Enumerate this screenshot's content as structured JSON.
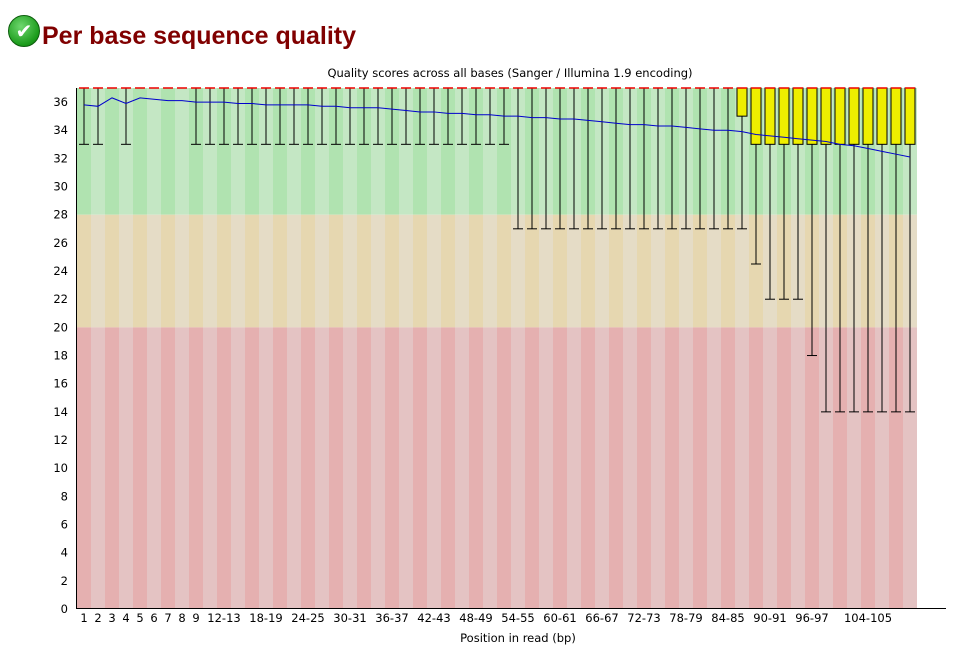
{
  "header": {
    "title": "Per base sequence quality",
    "status_icon": "check-circle-icon"
  },
  "chart_data": {
    "type": "box",
    "title": "Quality scores across all bases (Sanger / Illumina 1.9 encoding)",
    "xlabel": "Position in read (bp)",
    "ylabel": "",
    "ylim": [
      0,
      37
    ],
    "yticks": [
      0,
      2,
      4,
      6,
      8,
      10,
      12,
      14,
      16,
      18,
      20,
      22,
      24,
      26,
      28,
      30,
      32,
      34,
      36
    ],
    "bands": [
      {
        "from": 28,
        "to": 37,
        "colors": [
          "#b0e3b0",
          "#c4e7c4"
        ]
      },
      {
        "from": 20,
        "to": 28,
        "colors": [
          "#e6d7b0",
          "#e5dcc6"
        ]
      },
      {
        "from": 0,
        "to": 20,
        "colors": [
          "#e5b0b0",
          "#e4c3c3"
        ]
      }
    ],
    "categories": [
      "1",
      "2",
      "3",
      "4",
      "5",
      "6",
      "7",
      "8",
      "9",
      "10-11",
      "12-13",
      "14-15",
      "16-17",
      "18-19",
      "20-21",
      "22-23",
      "24-25",
      "26-27",
      "28-29",
      "30-31",
      "32-33",
      "34-35",
      "36-37",
      "38-39",
      "40-41",
      "42-43",
      "44-45",
      "46-47",
      "48-49",
      "50-51",
      "52-53",
      "54-55",
      "56-57",
      "58-59",
      "60-61",
      "62-63",
      "64-65",
      "66-67",
      "68-69",
      "70-71",
      "72-73",
      "74-75",
      "76-77",
      "78-79",
      "80-81",
      "82-83",
      "84-85",
      "86-87",
      "88-89",
      "90-91",
      "92-93",
      "94-95",
      "96-97",
      "98-99",
      "100-101",
      "102-103",
      "104-105",
      "106-107",
      "108-109",
      "110-111"
    ],
    "xtick_labels_shown": [
      "1",
      "2",
      "3",
      "4",
      "5",
      "6",
      "7",
      "8",
      "9",
      "12-13",
      "18-19",
      "24-25",
      "30-31",
      "36-37",
      "42-43",
      "48-49",
      "54-55",
      "60-61",
      "66-67",
      "72-73",
      "78-79",
      "84-85",
      "90-91",
      "96-97",
      "104-105"
    ],
    "median": [
      37,
      37,
      37,
      37,
      37,
      37,
      37,
      37,
      37,
      37,
      37,
      37,
      37,
      37,
      37,
      37,
      37,
      37,
      37,
      37,
      37,
      37,
      37,
      37,
      37,
      37,
      37,
      37,
      37,
      37,
      37,
      37,
      37,
      37,
      37,
      37,
      37,
      37,
      37,
      37,
      37,
      37,
      37,
      37,
      37,
      37,
      37,
      37,
      37,
      37,
      37,
      37,
      37,
      37,
      37,
      37,
      37,
      37,
      37,
      37
    ],
    "upper_quartile": [
      37,
      37,
      37,
      37,
      37,
      37,
      37,
      37,
      37,
      37,
      37,
      37,
      37,
      37,
      37,
      37,
      37,
      37,
      37,
      37,
      37,
      37,
      37,
      37,
      37,
      37,
      37,
      37,
      37,
      37,
      37,
      37,
      37,
      37,
      37,
      37,
      37,
      37,
      37,
      37,
      37,
      37,
      37,
      37,
      37,
      37,
      37,
      37,
      37,
      37,
      37,
      37,
      37,
      37,
      37,
      37,
      37,
      37,
      37,
      37
    ],
    "lower_quartile": [
      37,
      37,
      37,
      37,
      37,
      37,
      37,
      37,
      37,
      37,
      37,
      37,
      37,
      37,
      37,
      37,
      37,
      37,
      37,
      37,
      37,
      37,
      37,
      37,
      37,
      37,
      37,
      37,
      37,
      37,
      37,
      37,
      37,
      37,
      37,
      37,
      37,
      37,
      37,
      37,
      37,
      37,
      37,
      37,
      37,
      37,
      37,
      35,
      33,
      33,
      33,
      33,
      33,
      33,
      33,
      33,
      33,
      33,
      33,
      33
    ],
    "whisker_high": [
      37,
      37,
      37,
      37,
      37,
      37,
      37,
      37,
      37,
      37,
      37,
      37,
      37,
      37,
      37,
      37,
      37,
      37,
      37,
      37,
      37,
      37,
      37,
      37,
      37,
      37,
      37,
      37,
      37,
      37,
      37,
      37,
      37,
      37,
      37,
      37,
      37,
      37,
      37,
      37,
      37,
      37,
      37,
      37,
      37,
      37,
      37,
      37,
      37,
      37,
      37,
      37,
      37,
      37,
      37,
      37,
      37,
      37,
      37,
      37
    ],
    "whisker_low": [
      33,
      33,
      37,
      33,
      37,
      37,
      37,
      37,
      33,
      33,
      33,
      33,
      33,
      33,
      33,
      33,
      33,
      33,
      33,
      33,
      33,
      33,
      33,
      33,
      33,
      33,
      33,
      33,
      33,
      33,
      33,
      27,
      27,
      27,
      27,
      27,
      27,
      27,
      27,
      27,
      27,
      27,
      27,
      27,
      27,
      27,
      27,
      27,
      24.5,
      22,
      22,
      22,
      18,
      14,
      14,
      14,
      14,
      14,
      14,
      14
    ],
    "mean": [
      35.8,
      35.7,
      36.3,
      35.9,
      36.3,
      36.2,
      36.1,
      36.1,
      36.0,
      36.0,
      36.0,
      35.9,
      35.9,
      35.8,
      35.8,
      35.8,
      35.8,
      35.7,
      35.7,
      35.6,
      35.6,
      35.6,
      35.5,
      35.4,
      35.3,
      35.3,
      35.2,
      35.2,
      35.1,
      35.1,
      35.0,
      35.0,
      34.9,
      34.9,
      34.8,
      34.8,
      34.7,
      34.6,
      34.5,
      34.4,
      34.4,
      34.3,
      34.3,
      34.2,
      34.1,
      34.0,
      34.0,
      33.9,
      33.7,
      33.6,
      33.5,
      33.4,
      33.3,
      33.2,
      33.0,
      32.9,
      32.7,
      32.5,
      32.3,
      32.1
    ],
    "colors": {
      "box": "#eeee00",
      "median": "#ee0000",
      "mean": "#0000cc",
      "whisker": "#000000"
    }
  }
}
